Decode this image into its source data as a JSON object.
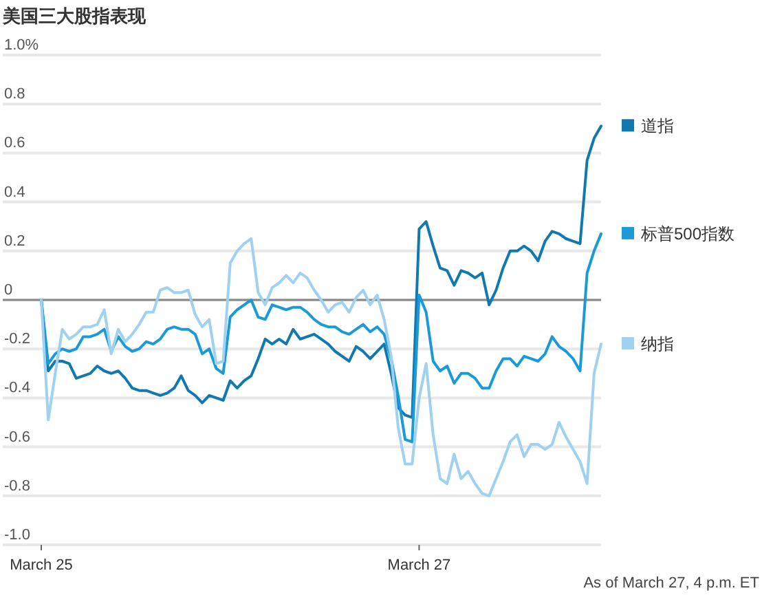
{
  "chart_data": {
    "type": "line",
    "title": "美国三大股指表现",
    "annotations": [
      "As of March 27, 4 p.m. ET"
    ],
    "categories": [
      "March 25",
      null,
      null,
      null,
      null,
      null,
      null,
      null,
      null,
      null,
      null,
      null,
      null,
      null,
      null,
      null,
      null,
      null,
      null,
      null,
      null,
      null,
      null,
      null,
      null,
      null,
      null,
      null,
      null,
      null,
      null,
      null,
      null,
      null,
      null,
      null,
      null,
      null,
      null,
      null,
      null,
      null,
      null,
      null,
      null,
      null,
      null,
      null,
      null,
      null,
      null,
      null,
      null,
      null,
      "March 27",
      null,
      null,
      null,
      null,
      null,
      null,
      null,
      null,
      null,
      null,
      null,
      null,
      null,
      null,
      null,
      null,
      null,
      null,
      null,
      null,
      null,
      null,
      null,
      null,
      null,
      null
    ],
    "ylim": [
      -1,
      1
    ],
    "yticks": [
      {
        "value": 1,
        "label": "1.0%"
      },
      0.8,
      0.6,
      0.4,
      0.2,
      0,
      -0.2,
      -0.4,
      -0.6,
      -0.8,
      {
        "value": -1,
        "label": "-1.0"
      }
    ],
    "grid": "y",
    "legend": "right",
    "marker": "none",
    "line_style": "solid",
    "ref_lines": [
      {
        "axis": "y",
        "value": 0,
        "color": "#888888"
      }
    ],
    "series": [
      {
        "name": "道指",
        "color": "#1279b0",
        "values": [
          0,
          -0.29,
          -0.25,
          -0.25,
          -0.26,
          -0.32,
          -0.31,
          -0.3,
          -0.27,
          -0.29,
          -0.3,
          -0.29,
          -0.32,
          -0.36,
          -0.37,
          -0.37,
          -0.38,
          -0.39,
          -0.38,
          -0.36,
          -0.31,
          -0.37,
          -0.39,
          -0.42,
          -0.39,
          -0.4,
          -0.41,
          -0.33,
          -0.36,
          -0.33,
          -0.31,
          -0.24,
          -0.16,
          -0.18,
          -0.16,
          -0.18,
          -0.12,
          -0.16,
          -0.15,
          -0.14,
          -0.16,
          -0.18,
          -0.21,
          -0.23,
          -0.25,
          -0.19,
          -0.21,
          -0.24,
          -0.21,
          -0.18,
          -0.3,
          -0.44,
          -0.47,
          -0.48,
          0.29,
          0.32,
          0.22,
          0.13,
          0.12,
          0.06,
          0.12,
          0.11,
          0.09,
          0.11,
          -0.02,
          0.04,
          0.13,
          0.2,
          0.2,
          0.22,
          0.2,
          0.16,
          0.24,
          0.28,
          0.27,
          0.25,
          0.24,
          0.23,
          0.57,
          0.66,
          0.71
        ]
      },
      {
        "name": "标普500指数",
        "color": "#1a9bd7",
        "values": [
          0,
          -0.26,
          -0.22,
          -0.2,
          -0.21,
          -0.2,
          -0.15,
          -0.15,
          -0.14,
          -0.12,
          -0.21,
          -0.15,
          -0.19,
          -0.21,
          -0.2,
          -0.17,
          -0.18,
          -0.16,
          -0.12,
          -0.11,
          -0.12,
          -0.12,
          -0.14,
          -0.22,
          -0.2,
          -0.28,
          -0.3,
          -0.07,
          -0.04,
          -0.02,
          0,
          -0.07,
          -0.08,
          -0.02,
          -0.03,
          -0.04,
          -0.03,
          -0.03,
          -0.05,
          -0.08,
          -0.1,
          -0.11,
          -0.11,
          -0.13,
          -0.14,
          -0.12,
          -0.1,
          -0.13,
          -0.11,
          -0.14,
          -0.24,
          -0.39,
          -0.57,
          -0.58,
          0.02,
          -0.05,
          -0.25,
          -0.29,
          -0.27,
          -0.34,
          -0.3,
          -0.3,
          -0.32,
          -0.36,
          -0.36,
          -0.29,
          -0.24,
          -0.24,
          -0.27,
          -0.23,
          -0.24,
          -0.25,
          -0.22,
          -0.15,
          -0.19,
          -0.21,
          -0.24,
          -0.29,
          0.11,
          0.2,
          0.27
        ]
      },
      {
        "name": "纳指",
        "color": "#9fd1f0",
        "values": [
          0,
          -0.49,
          -0.3,
          -0.12,
          -0.16,
          -0.14,
          -0.11,
          -0.11,
          -0.1,
          -0.04,
          -0.22,
          -0.12,
          -0.17,
          -0.14,
          -0.1,
          -0.05,
          -0.05,
          0.04,
          0.05,
          0.03,
          0.03,
          0.04,
          -0.06,
          -0.11,
          -0.08,
          -0.26,
          -0.25,
          0.15,
          0.2,
          0.23,
          0.25,
          0.03,
          -0.02,
          0.05,
          0.07,
          0.1,
          0.07,
          0.11,
          0.09,
          0.04,
          0,
          -0.05,
          -0.02,
          -0.01,
          -0.05,
          0.01,
          0.04,
          -0.02,
          0.02,
          -0.08,
          -0.23,
          -0.52,
          -0.67,
          -0.67,
          -0.4,
          -0.26,
          -0.55,
          -0.73,
          -0.75,
          -0.63,
          -0.73,
          -0.7,
          -0.75,
          -0.79,
          -0.8,
          -0.73,
          -0.66,
          -0.58,
          -0.55,
          -0.64,
          -0.59,
          -0.59,
          -0.61,
          -0.59,
          -0.5,
          -0.56,
          -0.61,
          -0.66,
          -0.75,
          -0.3,
          -0.18
        ]
      }
    ]
  }
}
